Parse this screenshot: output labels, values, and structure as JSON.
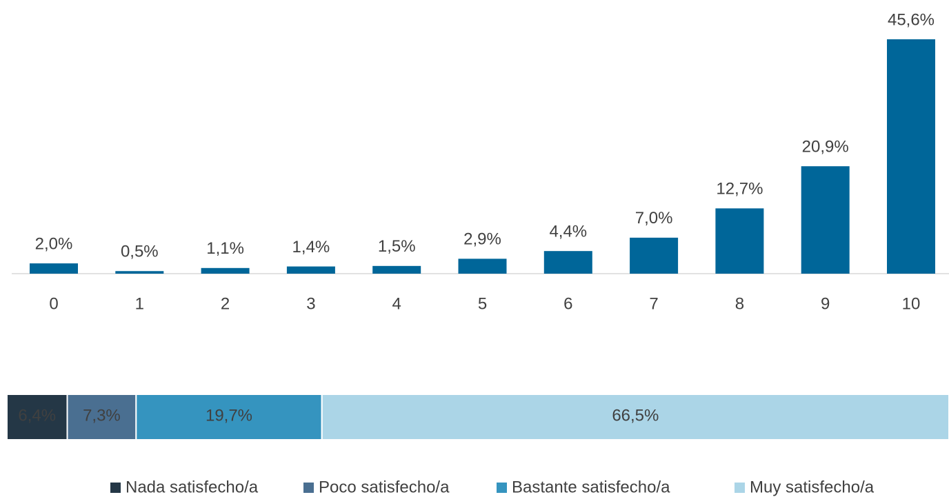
{
  "chart_data": [
    {
      "type": "bar",
      "categories": [
        "0",
        "1",
        "2",
        "3",
        "4",
        "5",
        "6",
        "7",
        "8",
        "9",
        "10"
      ],
      "values": [
        2.0,
        0.5,
        1.1,
        1.4,
        1.5,
        2.9,
        4.4,
        7.0,
        12.7,
        20.9,
        45.6
      ],
      "value_labels": [
        "2,0%",
        "0,5%",
        "1,1%",
        "1,4%",
        "1,5%",
        "2,9%",
        "4,4%",
        "7,0%",
        "12,7%",
        "20,9%",
        "45,6%"
      ],
      "color": "#006699"
    },
    {
      "type": "stacked_bar",
      "series": [
        {
          "name": "Nada satisfecho/a",
          "color": "#243746",
          "values": [
            6.4
          ],
          "value_labels": [
            "6,4%"
          ]
        },
        {
          "name": "Poco satisfecho/a",
          "color": "#4a6f91",
          "values": [
            7.3
          ],
          "value_labels": [
            "7,3%"
          ]
        },
        {
          "name": "Bastante satisfecho/a",
          "color": "#3594bf",
          "values": [
            19.7
          ],
          "value_labels": [
            "19,7%"
          ]
        },
        {
          "name": "Muy satisfecho/a",
          "color": "#abd5e7",
          "values": [
            66.5
          ],
          "value_labels": [
            "66,5%"
          ]
        }
      ],
      "legend": "bottom"
    }
  ]
}
